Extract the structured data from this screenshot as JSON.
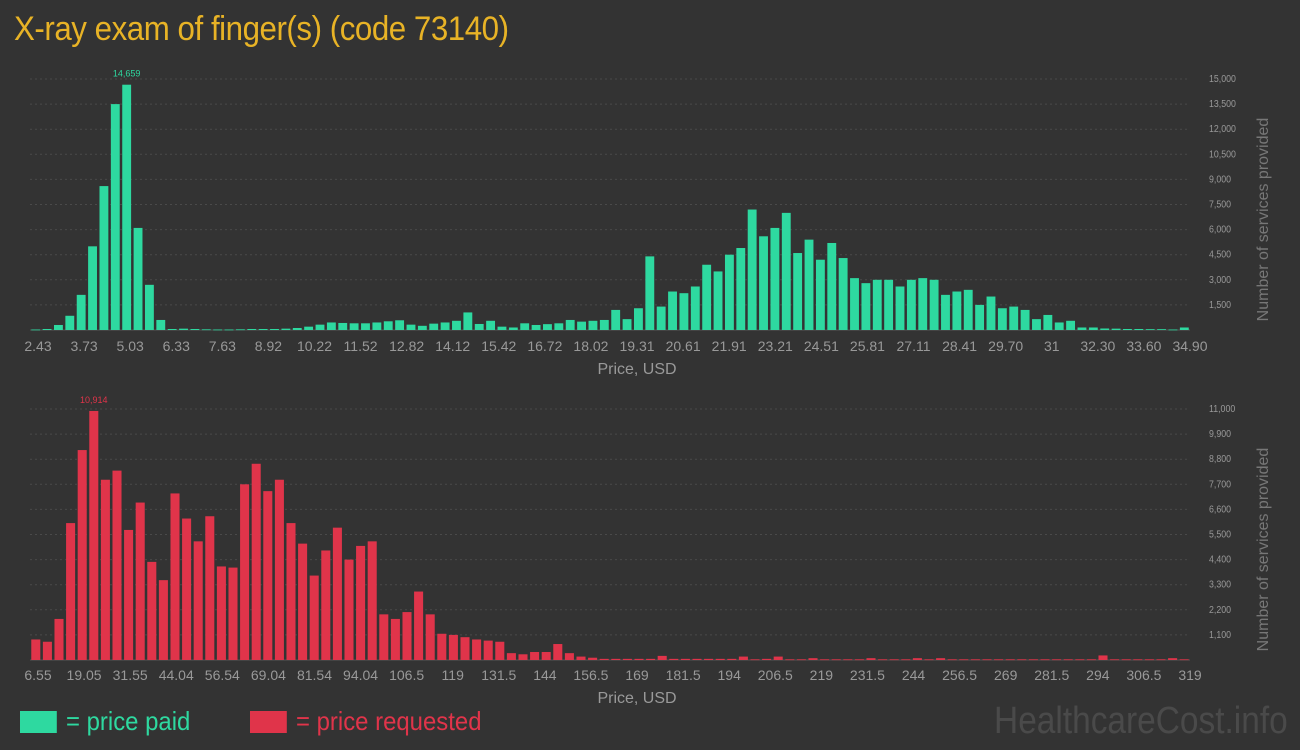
{
  "title": "X-ray exam of finger(s) (code 73140)",
  "watermark": "HealthcareCost.info",
  "legend": [
    {
      "label": "= price paid",
      "color": "#2ed9a0"
    },
    {
      "label": "= price requested",
      "color": "#e0344a"
    }
  ],
  "colors": {
    "paid": "#2ed9a0",
    "requested": "#e0344a",
    "background": "#333333",
    "axis_text": "#999999",
    "grid": "#4a4a4a"
  },
  "chart_data": [
    {
      "type": "bar",
      "xlabel": "Price, USD",
      "ylabel": "Number of services provided",
      "x_tick_labels": [
        "2.43",
        "3.73",
        "5.03",
        "6.33",
        "7.63",
        "8.92",
        "10.22",
        "11.52",
        "12.82",
        "14.12",
        "15.42",
        "16.72",
        "18.02",
        "19.31",
        "20.61",
        "21.91",
        "23.21",
        "24.51",
        "25.81",
        "27.11",
        "28.41",
        "29.70",
        "31",
        "32.30",
        "33.60",
        "34.90"
      ],
      "y_ticks": [
        1500,
        3000,
        4500,
        6000,
        7500,
        9000,
        10500,
        12000,
        13500,
        15000
      ],
      "y_tick_labels": [
        "1,500",
        "3,000",
        "4,500",
        "6,000",
        "7,500",
        "9,000",
        "10,500",
        "12,000",
        "13,500",
        "15,000"
      ],
      "ylim": [
        0,
        15000
      ],
      "peak_label": "14,659",
      "values": [
        30,
        60,
        300,
        850,
        2100,
        5000,
        8600,
        13500,
        14659,
        6100,
        2700,
        600,
        60,
        80,
        60,
        40,
        30,
        30,
        40,
        60,
        60,
        60,
        80,
        120,
        200,
        320,
        450,
        420,
        400,
        400,
        450,
        520,
        580,
        320,
        250,
        380,
        450,
        550,
        1050,
        360,
        550,
        200,
        150,
        400,
        300,
        350,
        400,
        600,
        500,
        550,
        600,
        1200,
        650,
        1300,
        4400,
        1400,
        2300,
        2200,
        2600,
        3900,
        3500,
        4500,
        4900,
        7200,
        5600,
        6100,
        7000,
        4600,
        5400,
        4200,
        5200,
        4300,
        3100,
        2800,
        3000,
        3000,
        2600,
        3000,
        3100,
        3000,
        2100,
        2300,
        2400,
        1500,
        2000,
        1300,
        1400,
        1200,
        650,
        900,
        450,
        550,
        150,
        150,
        90,
        80,
        60,
        60,
        50,
        50,
        30,
        150
      ]
    },
    {
      "type": "bar",
      "xlabel": "Price, USD",
      "ylabel": "Number of services provided",
      "x_tick_labels": [
        "6.55",
        "19.05",
        "31.55",
        "44.04",
        "56.54",
        "69.04",
        "81.54",
        "94.04",
        "106.5",
        "119",
        "131.5",
        "144",
        "156.5",
        "169",
        "181.5",
        "194",
        "206.5",
        "219",
        "231.5",
        "244",
        "256.5",
        "269",
        "281.5",
        "294",
        "306.5",
        "319"
      ],
      "y_ticks": [
        1100,
        2200,
        3300,
        4400,
        5500,
        6600,
        7700,
        8800,
        9900,
        11000
      ],
      "y_tick_labels": [
        "1,100",
        "2,200",
        "3,300",
        "4,400",
        "5,500",
        "6,600",
        "7,700",
        "8,800",
        "9,900",
        "11,000"
      ],
      "ylim": [
        0,
        11000
      ],
      "peak_label": "10,914",
      "values": [
        900,
        800,
        1800,
        6000,
        9200,
        10914,
        7900,
        8300,
        5700,
        6900,
        4300,
        3500,
        7300,
        6200,
        5200,
        6300,
        4100,
        4050,
        7700,
        8600,
        7400,
        7900,
        6000,
        5100,
        3700,
        4800,
        5800,
        4400,
        5000,
        5200,
        2000,
        1800,
        2100,
        3000,
        2000,
        1150,
        1100,
        1000,
        900,
        850,
        800,
        300,
        250,
        350,
        350,
        700,
        300,
        150,
        100,
        50,
        50,
        50,
        50,
        50,
        180,
        50,
        50,
        50,
        50,
        50,
        50,
        150,
        30,
        50,
        150,
        30,
        30,
        80,
        30,
        30,
        30,
        30,
        80,
        30,
        30,
        30,
        80,
        30,
        80,
        30,
        30,
        30,
        30,
        30,
        30,
        30,
        30,
        30,
        30,
        30,
        30,
        30,
        200,
        30,
        30,
        30,
        30,
        30,
        80,
        30
      ]
    }
  ]
}
